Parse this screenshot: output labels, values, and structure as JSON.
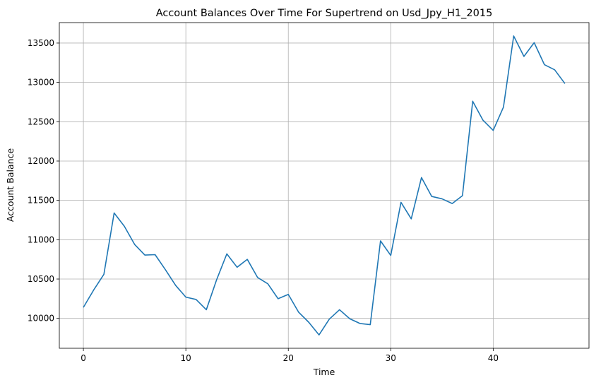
{
  "chart_data": {
    "type": "line",
    "title": "Account Balances Over Time For Supertrend on Usd_Jpy_H1_2015",
    "xlabel": "Time",
    "ylabel": "Account Balance",
    "xlim": [
      -2.35,
      49.35
    ],
    "ylim": [
      9620,
      13760
    ],
    "xticks": [
      0,
      10,
      20,
      30,
      40
    ],
    "yticks": [
      10000,
      10500,
      11000,
      11500,
      12000,
      12500,
      13000,
      13500
    ],
    "grid": true,
    "line_color": "#1f77b4",
    "series": [
      {
        "x": [
          0,
          1,
          2,
          3,
          4,
          5,
          6,
          7,
          8,
          9,
          10,
          11,
          12,
          13,
          14,
          15,
          16,
          17,
          18,
          19,
          20,
          21,
          22,
          23,
          24,
          25,
          26,
          27,
          28,
          29,
          30,
          31,
          32,
          33,
          34,
          35,
          36,
          37,
          38,
          39,
          40,
          41,
          42,
          43,
          44,
          45,
          46,
          47
        ],
        "values": [
          10140,
          10360,
          10560,
          11340,
          11170,
          10940,
          10805,
          10810,
          10620,
          10420,
          10270,
          10240,
          10110,
          10490,
          10820,
          10650,
          10750,
          10520,
          10440,
          10250,
          10305,
          10080,
          9950,
          9790,
          9990,
          10110,
          9995,
          9935,
          9920,
          10985,
          10800,
          11475,
          11265,
          11790,
          11550,
          11520,
          11460,
          11560,
          12760,
          12520,
          12390,
          12685,
          13590,
          13330,
          13505,
          13225,
          13160,
          12985
        ]
      }
    ]
  }
}
